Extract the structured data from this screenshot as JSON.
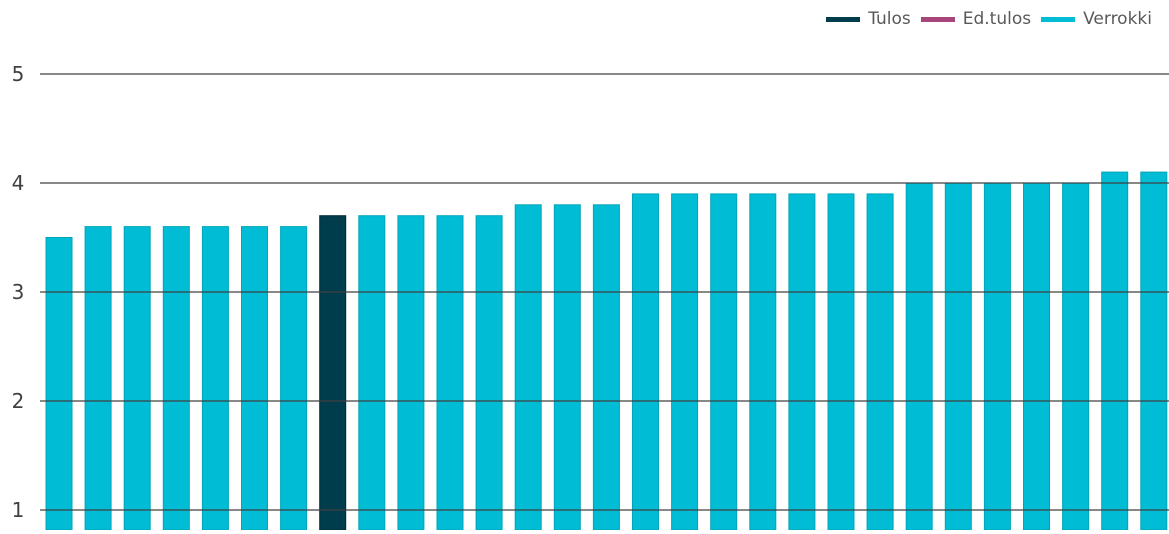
{
  "colors": {
    "tulos": "#003d4c",
    "ed_tulos": "#a6467a",
    "verrokki": "#00bcd4",
    "gridline": "#404040",
    "axis_text": "#404040"
  },
  "legend": [
    {
      "label": "Tulos",
      "color": "#003d4c"
    },
    {
      "label": "Ed.tulos",
      "color": "#a6467a"
    },
    {
      "label": "Verrokki",
      "color": "#00bcd4"
    }
  ],
  "chart_data": {
    "type": "bar",
    "title": "",
    "xlabel": "",
    "ylabel": "",
    "ylim": [
      1,
      5
    ],
    "yticks": [
      1,
      2,
      3,
      4,
      5
    ],
    "grid": true,
    "legend_position": "top-right",
    "values": [
      3.5,
      3.6,
      3.6,
      3.6,
      3.6,
      3.6,
      3.6,
      3.7,
      3.7,
      3.7,
      3.7,
      3.7,
      3.8,
      3.8,
      3.8,
      3.9,
      3.9,
      3.9,
      3.9,
      3.9,
      3.9,
      3.9,
      4.0,
      4.0,
      4.0,
      4.0,
      4.0,
      4.1,
      4.1
    ],
    "highlight_index": 7,
    "series": [
      {
        "name": "Tulos",
        "values": [
          3.7
        ]
      },
      {
        "name": "Verrokki",
        "values": [
          3.5,
          3.6,
          3.6,
          3.6,
          3.6,
          3.6,
          3.6,
          3.7,
          3.7,
          3.7,
          3.7,
          3.8,
          3.8,
          3.8,
          3.9,
          3.9,
          3.9,
          3.9,
          3.9,
          3.9,
          3.9,
          4.0,
          4.0,
          4.0,
          4.0,
          4.0,
          4.1,
          4.1
        ]
      }
    ]
  }
}
